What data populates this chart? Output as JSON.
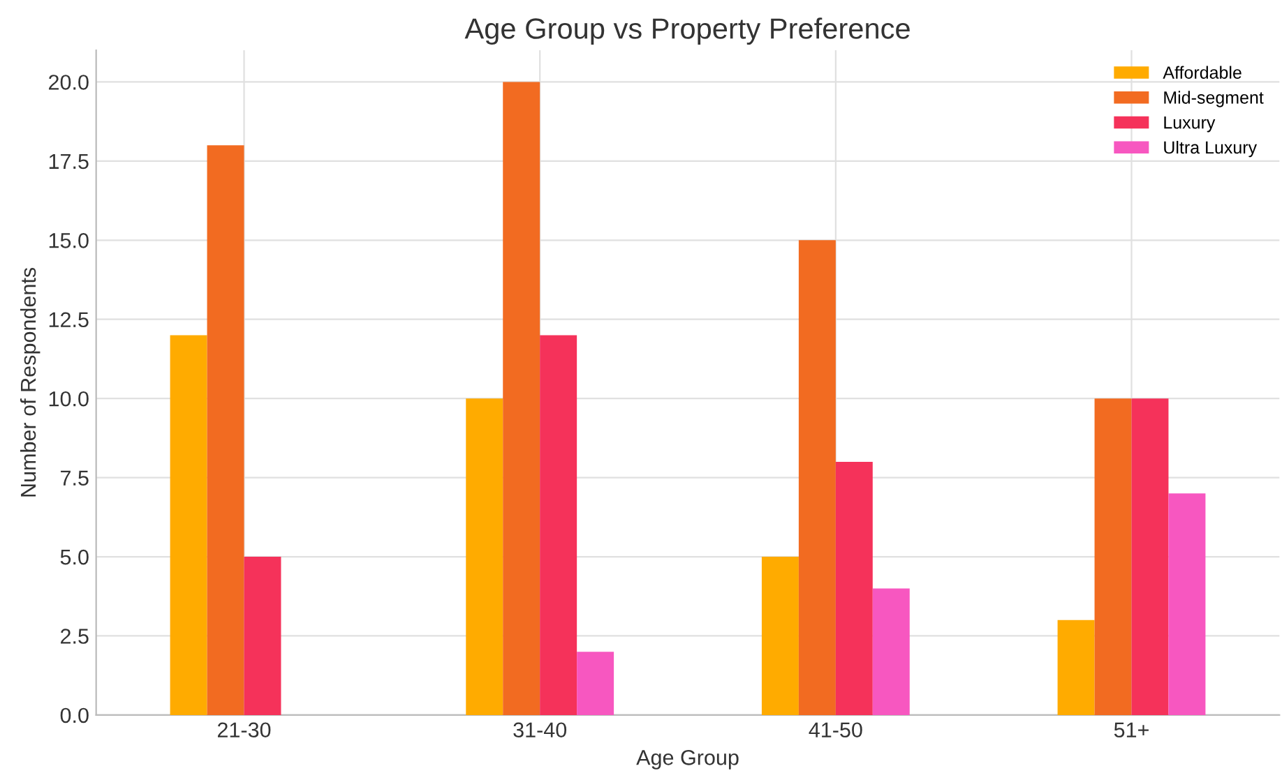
{
  "chart_data": {
    "type": "bar",
    "title": "Age Group vs Property Preference",
    "xlabel": "Age Group",
    "ylabel": "Number of Respondents",
    "categories": [
      "21-30",
      "31-40",
      "41-50",
      "51+"
    ],
    "series": [
      {
        "name": "Affordable",
        "color": "#ffab00",
        "values": [
          12,
          10,
          5,
          3
        ]
      },
      {
        "name": "Mid-segment",
        "color": "#f26b21",
        "values": [
          18,
          20,
          15,
          10
        ]
      },
      {
        "name": "Luxury",
        "color": "#f5325a",
        "values": [
          5,
          12,
          8,
          10
        ]
      },
      {
        "name": "Ultra Luxury",
        "color": "#f757c0",
        "values": [
          0,
          2,
          4,
          7
        ]
      }
    ],
    "ylim": [
      0,
      21
    ],
    "yticks": [
      {
        "value": 0,
        "label": "0.0"
      },
      {
        "value": 2.5,
        "label": "2.5"
      },
      {
        "value": 5,
        "label": "5.0"
      },
      {
        "value": 7.5,
        "label": "7.5"
      },
      {
        "value": 10,
        "label": "10.0"
      },
      {
        "value": 12.5,
        "label": "12.5"
      },
      {
        "value": 15,
        "label": "15.0"
      },
      {
        "value": 17.5,
        "label": "17.5"
      },
      {
        "value": 20,
        "label": "20.0"
      }
    ],
    "grid": true,
    "legend": "top right"
  }
}
